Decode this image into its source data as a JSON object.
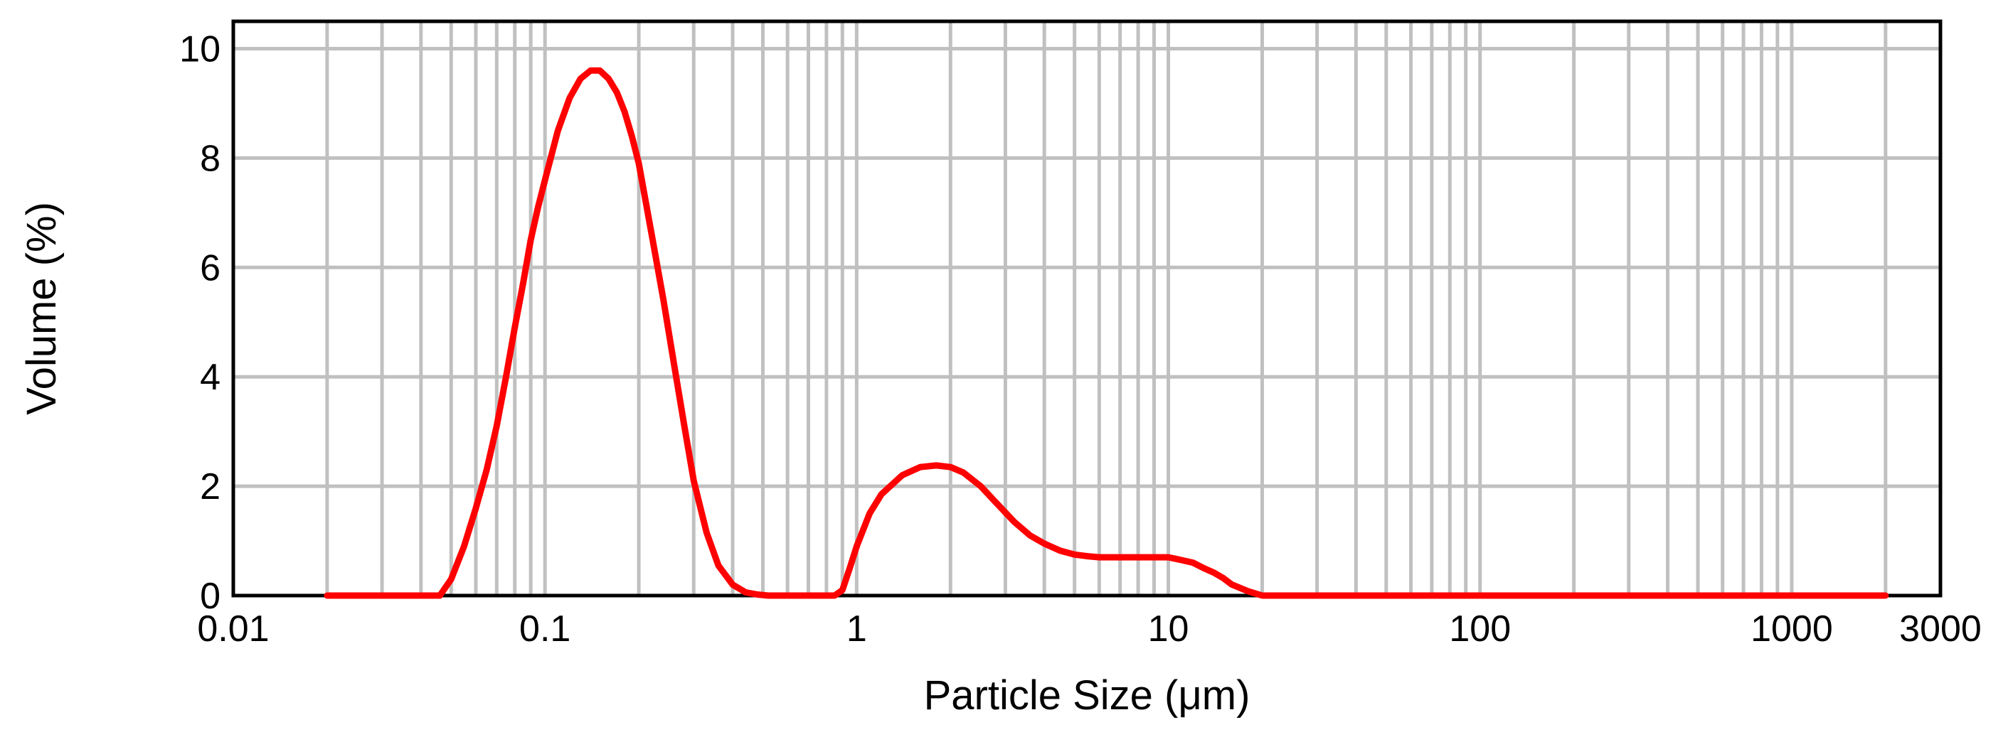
{
  "chart_data": {
    "type": "line",
    "title": "",
    "xlabel": "Particle Size (μm)",
    "ylabel": "Volume (%)",
    "xscale": "log",
    "xlim": [
      0.01,
      3000
    ],
    "ylim": [
      0,
      10.5
    ],
    "grid": true,
    "legend": "none",
    "x_tick_labels": [
      "0.01",
      "0.1",
      "1",
      "10",
      "100",
      "1000",
      "3000"
    ],
    "x_ticks": [
      0.01,
      0.1,
      1,
      10,
      100,
      1000,
      3000
    ],
    "y_tick_labels": [
      "0",
      "2",
      "4",
      "6",
      "8",
      "10"
    ],
    "y_ticks": [
      0,
      2,
      4,
      6,
      8,
      10
    ],
    "series": [
      {
        "color": "#ff0000",
        "x": [
          0.02,
          0.03,
          0.04,
          0.046,
          0.05,
          0.055,
          0.06,
          0.065,
          0.07,
          0.075,
          0.08,
          0.085,
          0.09,
          0.095,
          0.1,
          0.11,
          0.12,
          0.13,
          0.14,
          0.15,
          0.16,
          0.17,
          0.18,
          0.19,
          0.2,
          0.22,
          0.24,
          0.26,
          0.28,
          0.3,
          0.33,
          0.36,
          0.4,
          0.44,
          0.48,
          0.52,
          0.6,
          0.7,
          0.8,
          0.85,
          0.9,
          0.95,
          1.0,
          1.1,
          1.2,
          1.4,
          1.6,
          1.8,
          2.0,
          2.2,
          2.5,
          2.8,
          3.2,
          3.6,
          4.0,
          4.5,
          5.0,
          5.5,
          6,
          7,
          8,
          9,
          10,
          11,
          12,
          13,
          14,
          15,
          16,
          18,
          20,
          22,
          30,
          50,
          100,
          200,
          500,
          1000,
          2000
        ],
        "y": [
          0,
          0,
          0,
          0,
          0.3,
          0.9,
          1.6,
          2.3,
          3.1,
          4.0,
          4.9,
          5.7,
          6.5,
          7.1,
          7.6,
          8.5,
          9.1,
          9.45,
          9.6,
          9.6,
          9.45,
          9.2,
          8.85,
          8.4,
          7.9,
          6.6,
          5.4,
          4.2,
          3.1,
          2.1,
          1.15,
          0.55,
          0.2,
          0.06,
          0.02,
          0,
          0,
          0,
          0,
          0,
          0.1,
          0.5,
          0.9,
          1.5,
          1.85,
          2.2,
          2.35,
          2.38,
          2.35,
          2.25,
          2.0,
          1.7,
          1.35,
          1.1,
          0.95,
          0.82,
          0.75,
          0.72,
          0.7,
          0.7,
          0.7,
          0.7,
          0.7,
          0.65,
          0.6,
          0.5,
          0.42,
          0.32,
          0.2,
          0.08,
          0,
          0,
          0,
          0,
          0,
          0,
          0,
          0,
          0
        ]
      }
    ]
  }
}
